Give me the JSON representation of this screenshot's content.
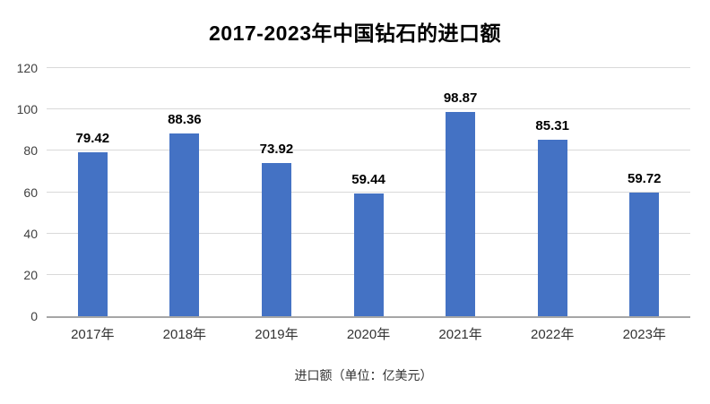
{
  "chart_data": {
    "type": "bar",
    "title": "2017-2023年中国钻石的进口额",
    "categories": [
      "2017年",
      "2018年",
      "2019年",
      "2020年",
      "2021年",
      "2022年",
      "2023年"
    ],
    "values": [
      79.42,
      88.36,
      73.92,
      59.44,
      98.87,
      85.31,
      59.72
    ],
    "value_labels": [
      "79.42",
      "88.36",
      "73.92",
      "59.44",
      "98.87",
      "85.31",
      "59.72"
    ],
    "legend_label": "进口额（单位：亿美元）",
    "xlabel": "",
    "ylabel": "",
    "ylim": [
      0,
      120
    ],
    "yticks": [
      0,
      20,
      40,
      60,
      80,
      100,
      120
    ],
    "grid": true,
    "legend_position": "bottom",
    "bar_color": "#4472C4",
    "gridline_color": "#d9d9d9",
    "axis_line_color": "#a6a6a6"
  }
}
